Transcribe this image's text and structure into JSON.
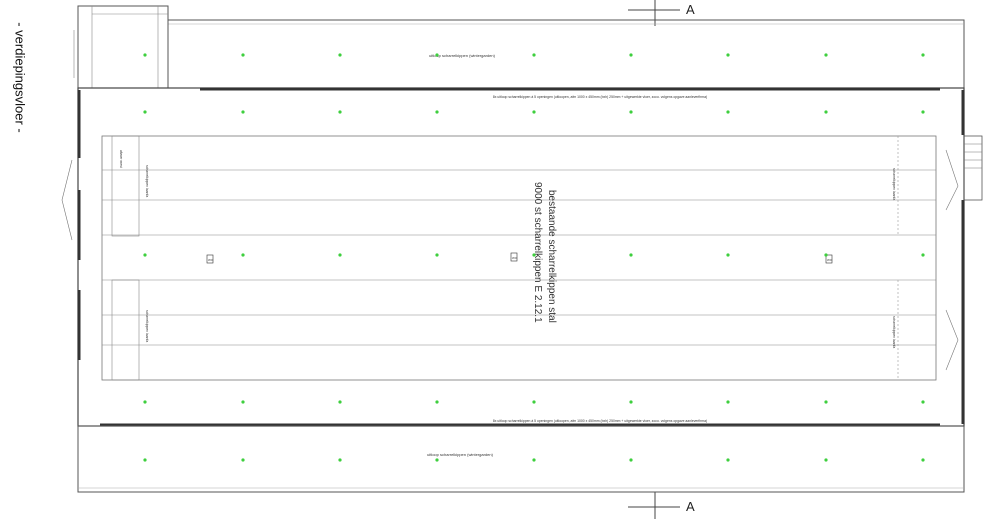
{
  "drawing": {
    "side_title": "- verdiepingsvloer -",
    "section_marker": "A",
    "center_label_line1": "bestaande scharrelkippen stal",
    "center_label_line2": "9000 st scharrelkippen E 2.12.1",
    "uitloop_top": "uitloop scharrelkippen (wintergarden)",
    "uitloop_bottom": "uitloop scharrelkippen (wintergarden)",
    "spec_note_top": "8x uitloop scharrelkippen à 5 openingen (uitloopen, afm 1000 x 450mm (bxh) 250mm + uitgewerkte vloer, zoco. volgens opgave aanleverfirma)",
    "spec_note_bottom": "8x uitloop scharrelkippen à 5 openingen (uitloopen, afm 1000 x 450mm (bxh) 250mm + uitgewerkte vloer, zoco. volgens opgave aanleverfirma)",
    "label_left_top": "afvoer mest",
    "label_row1": "scharrelkippen laanfa",
    "label_row2": "scharrelkippen laanfa",
    "label_right1": "scharrelkippen laanfa",
    "label_right2": "scharrelkippen laanfa",
    "tag": "WO",
    "colors": {
      "line": "#444444",
      "thin": "#9a9a9a",
      "green": "#3ecf3e"
    }
  }
}
